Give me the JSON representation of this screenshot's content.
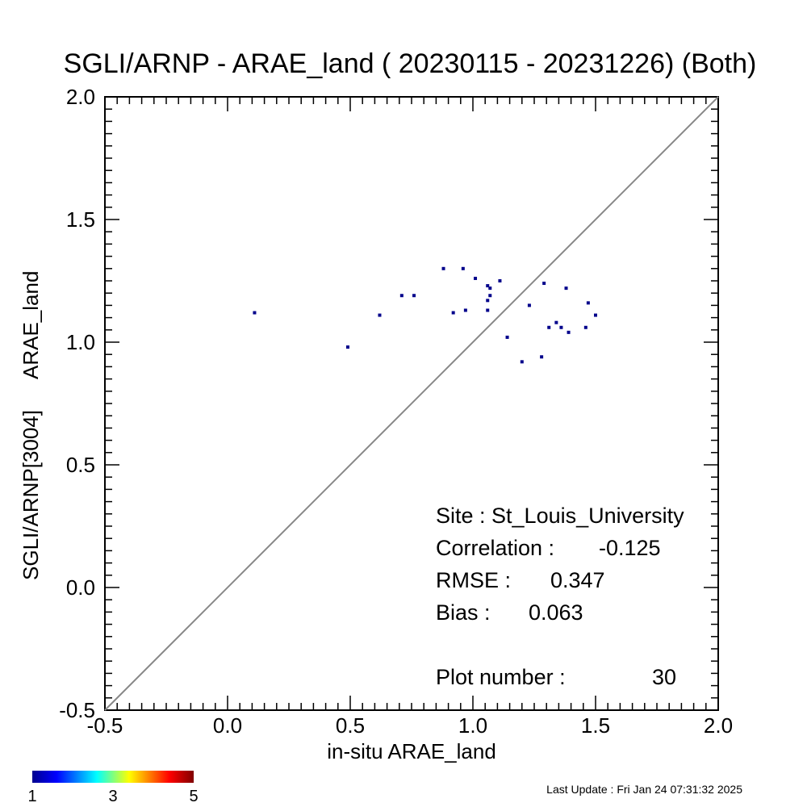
{
  "chart_data": {
    "type": "scatter",
    "title": "SGLI/ARNP - ARAE_land ( 20230115 - 20231226) (Both)",
    "xlabel": "in-situ ARAE_land",
    "ylabel_parts": [
      "SGLI/ARNP[3004]",
      "ARAE_land"
    ],
    "xlim": [
      -0.5,
      2.0
    ],
    "ylim": [
      -0.5,
      2.0
    ],
    "xticks": [
      "-0.5",
      "0.0",
      "0.5",
      "1.0",
      "1.5",
      "2.0"
    ],
    "yticks": [
      "-0.5",
      "0.0",
      "0.5",
      "1.0",
      "1.5",
      "2.0"
    ],
    "reference_line": "1:1",
    "points": [
      {
        "x": 0.11,
        "y": 1.12
      },
      {
        "x": 0.49,
        "y": 0.98
      },
      {
        "x": 0.62,
        "y": 1.11
      },
      {
        "x": 0.71,
        "y": 1.19
      },
      {
        "x": 0.76,
        "y": 1.19
      },
      {
        "x": 0.88,
        "y": 1.3
      },
      {
        "x": 0.92,
        "y": 1.12
      },
      {
        "x": 0.96,
        "y": 1.3
      },
      {
        "x": 0.97,
        "y": 1.13
      },
      {
        "x": 1.01,
        "y": 1.26
      },
      {
        "x": 1.06,
        "y": 1.13
      },
      {
        "x": 1.06,
        "y": 1.17
      },
      {
        "x": 1.06,
        "y": 1.23
      },
      {
        "x": 1.07,
        "y": 1.19
      },
      {
        "x": 1.07,
        "y": 1.22
      },
      {
        "x": 1.11,
        "y": 1.25
      },
      {
        "x": 1.14,
        "y": 1.02
      },
      {
        "x": 1.2,
        "y": 0.92
      },
      {
        "x": 1.23,
        "y": 1.15
      },
      {
        "x": 1.28,
        "y": 0.94
      },
      {
        "x": 1.29,
        "y": 1.24
      },
      {
        "x": 1.31,
        "y": 1.06
      },
      {
        "x": 1.34,
        "y": 1.08
      },
      {
        "x": 1.36,
        "y": 1.06
      },
      {
        "x": 1.38,
        "y": 1.22
      },
      {
        "x": 1.39,
        "y": 1.04
      },
      {
        "x": 1.46,
        "y": 1.06
      },
      {
        "x": 1.47,
        "y": 1.16
      },
      {
        "x": 1.5,
        "y": 1.11
      }
    ],
    "point_color": "#00008b",
    "stats": {
      "site": "Site : St_Louis_University",
      "correlation_label": "Correlation :",
      "correlation_value": "-0.125",
      "rmse_label": "RMSE :",
      "rmse_value": "0.347",
      "bias_label": "Bias :",
      "bias_value": "0.063",
      "plot_number_label": "Plot number :",
      "plot_number_value": "30"
    },
    "colorbar": {
      "ticks": [
        "1",
        "3",
        "5"
      ],
      "colors": [
        "#00008f",
        "#0000ff",
        "#00ffff",
        "#ffff00",
        "#ff0000",
        "#800000"
      ]
    }
  },
  "footer": {
    "last_update": "Last Update : Fri Jan 24 07:31:32 2025"
  }
}
